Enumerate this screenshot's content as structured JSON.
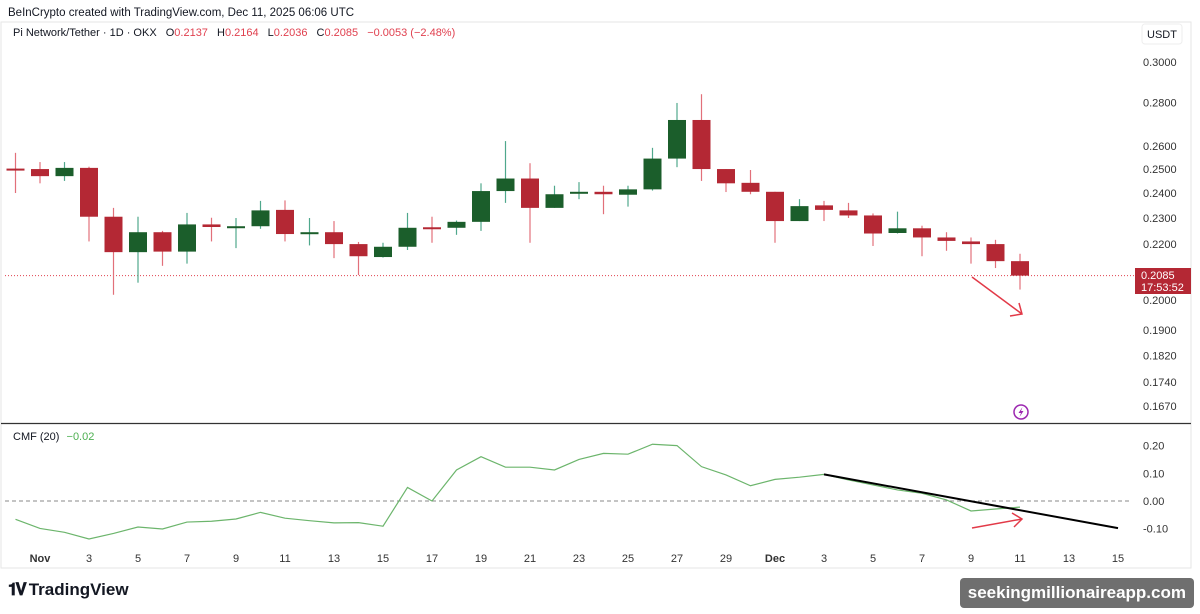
{
  "header": {
    "credit": "BeInCrypto created with TradingView.com, Dec 11, 2025 06:06 UTC",
    "symbol": "Pi Network/Tether · 1D · OKX",
    "o_label": "O",
    "o": "0.2137",
    "h_label": "H",
    "h": "0.2164",
    "l_label": "L",
    "l": "0.2036",
    "c_label": "C",
    "c": "0.2085",
    "change": "−0.0053 (−2.48%)"
  },
  "price_axis": {
    "currency": "USDT",
    "last_price": "0.2085",
    "countdown": "17:53:52"
  },
  "indicator": {
    "name": "CMF (20)",
    "value": "−0.02"
  },
  "footer": {
    "logo": "TradingView",
    "watermark": "seekingmillionaireapp.com"
  },
  "colors": {
    "up": "#1b5e2b",
    "down": "#b42834",
    "up_wick": "#4fa88c",
    "down_wick": "#e2707a",
    "cmf": "#6cb56c",
    "arrow": "#e23a48",
    "trendline": "#000000",
    "alert": "#9c27b0"
  },
  "icons": {
    "alert": "lightning-icon",
    "logo": "tradingview-logo-icon"
  },
  "chart_data": [
    {
      "type": "candlestick",
      "title": "Pi Network/Tether · 1D · OKX",
      "scale": "log",
      "ylim": [
        0.163,
        0.305
      ],
      "y_ticks": [
        "0.3000",
        "0.2800",
        "0.2600",
        "0.2500",
        "0.2400",
        "0.2300",
        "0.2200",
        "0.2000",
        "0.1900",
        "0.1820",
        "0.1740",
        "0.1670"
      ],
      "x_ticks": [
        "Nov",
        "3",
        "5",
        "7",
        "9",
        "11",
        "13",
        "15",
        "17",
        "19",
        "21",
        "23",
        "25",
        "27",
        "29",
        "Dec",
        "3",
        "5",
        "7",
        "9",
        "11",
        "13",
        "15"
      ],
      "columns": [
        "date",
        "open",
        "high",
        "low",
        "close"
      ],
      "candles": [
        [
          "Oct 31",
          0.2502,
          0.257,
          0.24,
          0.25
        ],
        [
          "Nov 1",
          0.25,
          0.253,
          0.244,
          0.247
        ],
        [
          "Nov 2",
          0.247,
          0.253,
          0.245,
          0.2505
        ],
        [
          "Nov 3",
          0.2505,
          0.251,
          0.221,
          0.2305
        ],
        [
          "Nov 4",
          0.2305,
          0.234,
          0.2018,
          0.217
        ],
        [
          "Nov 5",
          0.217,
          0.2305,
          0.206,
          0.2245
        ],
        [
          "Nov 6",
          0.2245,
          0.225,
          0.212,
          0.2172
        ],
        [
          "Nov 7",
          0.2172,
          0.232,
          0.2128,
          0.2275
        ],
        [
          "Nov 8",
          0.2275,
          0.2301,
          0.221,
          0.2265
        ],
        [
          "Nov 9",
          0.2265,
          0.23,
          0.2185,
          0.2268
        ],
        [
          "Nov 10",
          0.2268,
          0.2368,
          0.2258,
          0.233
        ],
        [
          "Nov 11",
          0.2332,
          0.237,
          0.221,
          0.2238
        ],
        [
          "Nov 12",
          0.2238,
          0.23,
          0.2195,
          0.2245
        ],
        [
          "Nov 13",
          0.2245,
          0.2288,
          0.2148,
          0.22
        ],
        [
          "Nov 14",
          0.22,
          0.2208,
          0.2087,
          0.2155
        ],
        [
          "Nov 15",
          0.2152,
          0.2205,
          0.215,
          0.219
        ],
        [
          "Nov 16",
          0.219,
          0.232,
          0.2178,
          0.2262
        ],
        [
          "Nov 17",
          0.2264,
          0.2305,
          0.2205,
          0.2262
        ],
        [
          "Nov 18",
          0.2262,
          0.229,
          0.2235,
          0.2285
        ],
        [
          "Nov 19",
          0.2285,
          0.244,
          0.225,
          0.2408
        ],
        [
          "Nov 20",
          0.2408,
          0.2622,
          0.236,
          0.246
        ],
        [
          "Nov 21",
          0.246,
          0.2525,
          0.2205,
          0.234
        ],
        [
          "Nov 22",
          0.234,
          0.243,
          0.234,
          0.2395
        ],
        [
          "Nov 23",
          0.24,
          0.2445,
          0.2375,
          0.2405
        ],
        [
          "Nov 24",
          0.2405,
          0.243,
          0.2315,
          0.2395
        ],
        [
          "Nov 25",
          0.2393,
          0.243,
          0.2345,
          0.2415
        ],
        [
          "Nov 26",
          0.2415,
          0.2592,
          0.241,
          0.2545
        ],
        [
          "Nov 27",
          0.2545,
          0.2798,
          0.2508,
          0.2718
        ],
        [
          "Nov 28",
          0.2718,
          0.284,
          0.245,
          0.25
        ],
        [
          "Nov 29",
          0.25,
          0.25,
          0.2404,
          0.244
        ],
        [
          "Nov 30",
          0.2442,
          0.2496,
          0.2395,
          0.2405
        ],
        [
          "Dec 1",
          0.2405,
          0.2405,
          0.2205,
          0.2288
        ],
        [
          "Dec 2",
          0.2288,
          0.2375,
          0.2288,
          0.2347
        ],
        [
          "Dec 3",
          0.235,
          0.2368,
          0.2288,
          0.2332
        ],
        [
          "Dec 4",
          0.233,
          0.236,
          0.23,
          0.231
        ],
        [
          "Dec 5",
          0.231,
          0.2318,
          0.2193,
          0.224
        ],
        [
          "Dec 6",
          0.2242,
          0.2325,
          0.224,
          0.226
        ],
        [
          "Dec 7",
          0.226,
          0.227,
          0.2155,
          0.2225
        ],
        [
          "Dec 8",
          0.2225,
          0.2245,
          0.2175,
          0.2212
        ],
        [
          "Dec 9",
          0.221,
          0.2225,
          0.2128,
          0.22
        ],
        [
          "Dec 10",
          0.22,
          0.2216,
          0.2112,
          0.2137
        ],
        [
          "Dec 11",
          0.2137,
          0.2164,
          0.2036,
          0.2085
        ]
      ],
      "last_price_line": 0.2085
    },
    {
      "type": "line",
      "title": "CMF (20)",
      "ylim": [
        -0.15,
        0.22
      ],
      "y_ticks": [
        "0.20",
        "0.10",
        "0.00",
        "-0.10"
      ],
      "zero_line": 0,
      "dates": [
        "Oct 31",
        "Nov 1",
        "Nov 2",
        "Nov 3",
        "Nov 4",
        "Nov 5",
        "Nov 6",
        "Nov 7",
        "Nov 8",
        "Nov 9",
        "Nov 10",
        "Nov 11",
        "Nov 12",
        "Nov 13",
        "Nov 14",
        "Nov 15",
        "Nov 16",
        "Nov 17",
        "Nov 18",
        "Nov 19",
        "Nov 20",
        "Nov 21",
        "Nov 22",
        "Nov 23",
        "Nov 24",
        "Nov 25",
        "Nov 26",
        "Nov 27",
        "Nov 28",
        "Nov 29",
        "Nov 30",
        "Dec 1",
        "Dec 2",
        "Dec 3",
        "Dec 4",
        "Dec 5",
        "Dec 6",
        "Dec 7",
        "Dec 8",
        "Dec 9",
        "Dec 10",
        "Dec 11"
      ],
      "values": [
        -0.066,
        -0.099,
        -0.113,
        -0.137,
        -0.117,
        -0.094,
        -0.101,
        -0.076,
        -0.073,
        -0.065,
        -0.041,
        -0.062,
        -0.071,
        -0.079,
        -0.078,
        -0.091,
        0.049,
        0.0,
        0.112,
        0.16,
        0.122,
        0.122,
        0.112,
        0.15,
        0.172,
        0.169,
        0.205,
        0.2,
        0.124,
        0.094,
        0.055,
        0.078,
        0.086,
        0.096,
        0.076,
        0.058,
        0.04,
        0.028,
        0.004,
        -0.036,
        -0.029,
        -0.022
      ],
      "trendline": {
        "from": [
          "Dec 3",
          0.096
        ],
        "to": [
          "Dec 15",
          -0.098
        ]
      }
    }
  ]
}
